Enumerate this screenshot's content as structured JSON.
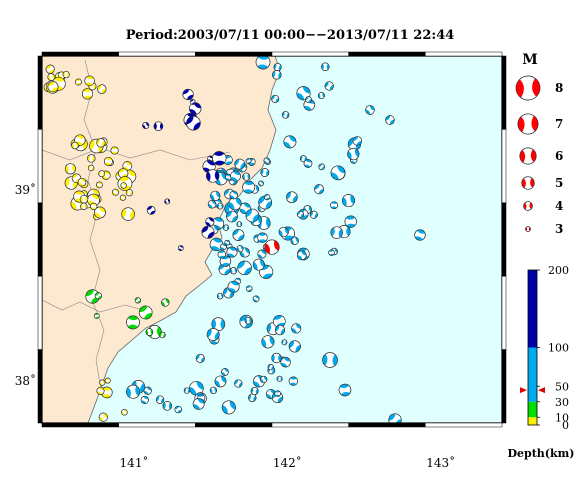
{
  "title": "Period:2003/07/11 00:00−−2013/07/11 22:44",
  "map": {
    "lon_range": [
      140.4,
      143.4
    ],
    "lat_range": [
      37.78,
      39.7
    ],
    "lon_ticks": [
      {
        "value": 141,
        "label": "141˚"
      },
      {
        "value": 142,
        "label": "142˚"
      },
      {
        "value": 143,
        "label": "143˚"
      }
    ],
    "lat_ticks": [
      {
        "value": 38,
        "label": "38˚"
      },
      {
        "value": 39,
        "label": "39˚"
      }
    ],
    "land_color": "#fde9cf",
    "sea_color": "#e0ffff",
    "highlight_event": {
      "lon": 141.9,
      "lat": 38.7,
      "magnitude": 5.5,
      "color": "#ff0000"
    }
  },
  "magnitude_legend": {
    "header": "M",
    "entries": [
      {
        "label": "8",
        "magnitude": 8
      },
      {
        "label": "7",
        "magnitude": 7
      },
      {
        "label": "6",
        "magnitude": 6
      },
      {
        "label": "5",
        "magnitude": 5
      },
      {
        "label": "4",
        "magnitude": 4
      },
      {
        "label": "3",
        "magnitude": 3
      }
    ]
  },
  "depth_legend": {
    "unit_label": "Depth(km)",
    "max": 200,
    "tick_labels": [
      {
        "value": 200,
        "label": "200"
      },
      {
        "value": 100,
        "label": "100"
      },
      {
        "value": 50,
        "label": "50"
      },
      {
        "value": 30,
        "label": "30"
      },
      {
        "value": 10,
        "label": "10"
      },
      {
        "value": 0,
        "label": "0"
      }
    ],
    "bands": [
      {
        "from": 0,
        "to": 10,
        "color": "#ffee00"
      },
      {
        "from": 10,
        "to": 30,
        "color": "#00dd00"
      },
      {
        "from": 30,
        "to": 100,
        "color": "#00aaee"
      },
      {
        "from": 100,
        "to": 200,
        "color": "#0000aa"
      }
    ],
    "marker_depth": 45,
    "marker_color": "#dd0000"
  }
}
